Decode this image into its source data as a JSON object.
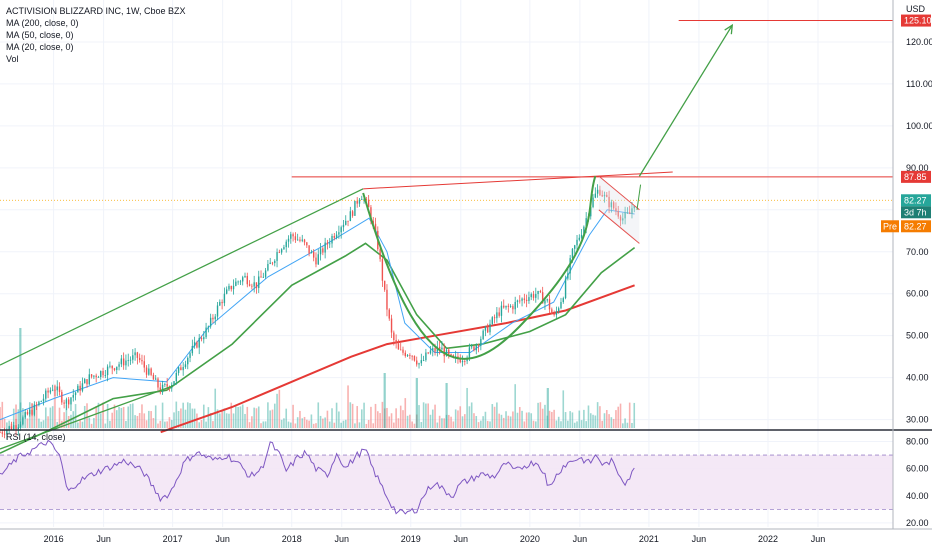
{
  "legend": {
    "title": "ACTIVISION BLIZZARD INC, 1W, Cboe BZX",
    "ma200": "MA (200, close, 0)",
    "ma50": "MA (50, close, 0)",
    "ma20": "MA (20, close, 0)",
    "vol": "Vol",
    "rsi": "RSI (14, close)"
  },
  "currency": "USD",
  "price_tags": {
    "target": "125.10",
    "resistance": "87.85",
    "last": "82.27",
    "countdown": "3d 7h",
    "pre_label": "Pre",
    "pre_value": "82.27"
  },
  "colors": {
    "up": "#26a69a",
    "down": "#ef5350",
    "ma200": "#e53935",
    "ma50": "#43a047",
    "ma20": "#42a5f5",
    "rsi": "#7e57c2",
    "rsi_band": "#f3e5f5",
    "drawing_green": "#43a047",
    "drawing_red": "#e53935",
    "grid": "#f0f3fa"
  },
  "chart_data": {
    "type": "candlestick",
    "title": "ACTIVISION BLIZZARD INC, 1W, Cboe BZX",
    "price_axis": {
      "ticks": [
        30,
        40,
        50,
        60,
        70,
        80,
        90,
        100,
        110,
        120
      ],
      "labels": [
        "30.00",
        "40.00",
        "50.00",
        "60.00",
        "70.00",
        "80.00",
        "90.00",
        "100.00",
        "110.00",
        "120.00"
      ],
      "range": [
        28,
        130
      ]
    },
    "rsi_axis": {
      "ticks": [
        20,
        40,
        60,
        80
      ],
      "labels": [
        "20.00",
        "40.00",
        "60.00",
        "80.00"
      ],
      "range": [
        17,
        87
      ],
      "band": [
        30,
        70
      ]
    },
    "time_axis": {
      "labels": [
        "2016",
        "Jun",
        "2017",
        "Jun",
        "2018",
        "Jun",
        "2019",
        "Jun",
        "2020",
        "Jun",
        "2021",
        "Jun",
        "2022",
        "Jun"
      ],
      "dates": [
        2016.0,
        2016.42,
        2017.0,
        2017.42,
        2018.0,
        2018.42,
        2019.0,
        2019.42,
        2020.0,
        2020.42,
        2021.0,
        2021.42,
        2022.0,
        2022.42
      ],
      "range": [
        2015.55,
        2023.05
      ]
    },
    "price_path": [
      [
        2015.55,
        27
      ],
      [
        2015.7,
        29
      ],
      [
        2015.85,
        33
      ],
      [
        2016.0,
        38
      ],
      [
        2016.1,
        34
      ],
      [
        2016.2,
        37
      ],
      [
        2016.3,
        40
      ],
      [
        2016.45,
        42
      ],
      [
        2016.6,
        44
      ],
      [
        2016.7,
        45
      ],
      [
        2016.8,
        41
      ],
      [
        2016.9,
        37
      ],
      [
        2017.0,
        39
      ],
      [
        2017.1,
        44
      ],
      [
        2017.2,
        48
      ],
      [
        2017.3,
        52
      ],
      [
        2017.4,
        58
      ],
      [
        2017.5,
        62
      ],
      [
        2017.6,
        64
      ],
      [
        2017.7,
        62
      ],
      [
        2017.8,
        66
      ],
      [
        2017.9,
        71
      ],
      [
        2018.0,
        74
      ],
      [
        2018.1,
        72
      ],
      [
        2018.2,
        68
      ],
      [
        2018.3,
        72
      ],
      [
        2018.4,
        76
      ],
      [
        2018.5,
        79
      ],
      [
        2018.58,
        84
      ],
      [
        2018.65,
        80
      ],
      [
        2018.72,
        72
      ],
      [
        2018.78,
        60
      ],
      [
        2018.84,
        50
      ],
      [
        2018.9,
        46
      ],
      [
        2019.0,
        46
      ],
      [
        2019.08,
        43
      ],
      [
        2019.15,
        46
      ],
      [
        2019.25,
        47
      ],
      [
        2019.35,
        44
      ],
      [
        2019.45,
        45
      ],
      [
        2019.55,
        48
      ],
      [
        2019.65,
        52
      ],
      [
        2019.75,
        56
      ],
      [
        2019.85,
        57
      ],
      [
        2019.95,
        59
      ],
      [
        2020.05,
        60
      ],
      [
        2020.15,
        58
      ],
      [
        2020.2,
        54
      ],
      [
        2020.28,
        60
      ],
      [
        2020.36,
        70
      ],
      [
        2020.45,
        76
      ],
      [
        2020.52,
        82
      ],
      [
        2020.58,
        85
      ],
      [
        2020.65,
        82
      ],
      [
        2020.72,
        80
      ],
      [
        2020.78,
        78
      ],
      [
        2020.84,
        79
      ],
      [
        2020.88,
        82.27
      ]
    ],
    "series": [
      {
        "name": "MA (200, close, 0)",
        "values": [
          [
            2016.9,
            27
          ],
          [
            2017.5,
            33
          ],
          [
            2018.0,
            39
          ],
          [
            2018.5,
            45
          ],
          [
            2018.8,
            48
          ],
          [
            2019.2,
            50
          ],
          [
            2019.8,
            53
          ],
          [
            2020.3,
            56
          ],
          [
            2020.88,
            62
          ]
        ]
      },
      {
        "name": "MA (50, close, 0)",
        "values": [
          [
            2015.55,
            22
          ],
          [
            2016.0,
            28
          ],
          [
            2016.5,
            35
          ],
          [
            2016.95,
            37
          ],
          [
            2017.5,
            48
          ],
          [
            2018.0,
            62
          ],
          [
            2018.45,
            69
          ],
          [
            2018.62,
            72
          ],
          [
            2018.8,
            68
          ],
          [
            2019.05,
            55
          ],
          [
            2019.3,
            47
          ],
          [
            2019.6,
            48
          ],
          [
            2020.0,
            51
          ],
          [
            2020.3,
            55
          ],
          [
            2020.6,
            65
          ],
          [
            2020.88,
            71
          ]
        ]
      },
      {
        "name": "MA (20, close, 0)",
        "values": [
          [
            2015.55,
            30
          ],
          [
            2016.0,
            35
          ],
          [
            2016.5,
            40
          ],
          [
            2016.95,
            39
          ],
          [
            2017.3,
            52
          ],
          [
            2017.8,
            64
          ],
          [
            2018.3,
            72
          ],
          [
            2018.65,
            78
          ],
          [
            2018.8,
            70
          ],
          [
            2018.95,
            53
          ],
          [
            2019.2,
            46
          ],
          [
            2019.5,
            46
          ],
          [
            2019.85,
            53
          ],
          [
            2020.2,
            58
          ],
          [
            2020.5,
            74
          ],
          [
            2020.65,
            80
          ],
          [
            2020.88,
            79
          ]
        ]
      }
    ],
    "rsi_path": [
      [
        2015.55,
        55
      ],
      [
        2015.7,
        68
      ],
      [
        2015.85,
        75
      ],
      [
        2015.95,
        80
      ],
      [
        2016.05,
        70
      ],
      [
        2016.12,
        42
      ],
      [
        2016.2,
        50
      ],
      [
        2016.35,
        57
      ],
      [
        2016.5,
        62
      ],
      [
        2016.6,
        66
      ],
      [
        2016.75,
        58
      ],
      [
        2016.9,
        38
      ],
      [
        2016.98,
        42
      ],
      [
        2017.1,
        65
      ],
      [
        2017.2,
        72
      ],
      [
        2017.35,
        66
      ],
      [
        2017.45,
        70
      ],
      [
        2017.55,
        64
      ],
      [
        2017.65,
        54
      ],
      [
        2017.75,
        60
      ],
      [
        2017.82,
        79
      ],
      [
        2017.9,
        70
      ],
      [
        2017.95,
        58
      ],
      [
        2018.05,
        68
      ],
      [
        2018.12,
        72
      ],
      [
        2018.2,
        60
      ],
      [
        2018.3,
        55
      ],
      [
        2018.38,
        72
      ],
      [
        2018.45,
        60
      ],
      [
        2018.55,
        70
      ],
      [
        2018.62,
        74
      ],
      [
        2018.68,
        60
      ],
      [
        2018.75,
        48
      ],
      [
        2018.82,
        36
      ],
      [
        2018.88,
        28
      ],
      [
        2018.95,
        27
      ],
      [
        2019.05,
        30
      ],
      [
        2019.12,
        42
      ],
      [
        2019.2,
        50
      ],
      [
        2019.28,
        44
      ],
      [
        2019.35,
        40
      ],
      [
        2019.42,
        49
      ],
      [
        2019.5,
        52
      ],
      [
        2019.6,
        56
      ],
      [
        2019.7,
        54
      ],
      [
        2019.8,
        64
      ],
      [
        2019.88,
        58
      ],
      [
        2019.95,
        62
      ],
      [
        2020.05,
        65
      ],
      [
        2020.12,
        58
      ],
      [
        2020.15,
        45
      ],
      [
        2020.2,
        52
      ],
      [
        2020.28,
        62
      ],
      [
        2020.36,
        66
      ],
      [
        2020.42,
        68
      ],
      [
        2020.5,
        64
      ],
      [
        2020.56,
        70
      ],
      [
        2020.62,
        62
      ],
      [
        2020.68,
        66
      ],
      [
        2020.75,
        56
      ],
      [
        2020.8,
        50
      ],
      [
        2020.85,
        55
      ],
      [
        2020.88,
        60
      ]
    ],
    "annotations": {
      "green_channel_upper": [
        [
          2015.55,
          43
        ],
        [
          2018.6,
          85
        ]
      ],
      "green_channel_lower": [
        [
          2015.55,
          23
        ],
        [
          2017.0,
          38
        ]
      ],
      "red_rising_line": [
        [
          2018.6,
          85
        ],
        [
          2021.2,
          89
        ]
      ],
      "horizontal_resistance": 87.85,
      "horizontal_target": 125.1,
      "target_arrow": [
        [
          2020.92,
          88
        ],
        [
          2021.7,
          124
        ]
      ],
      "cup_curve": [
        [
          2018.6,
          84
        ],
        [
          2019.15,
          40
        ],
        [
          2019.6,
          44
        ],
        [
          2020.1,
          58
        ],
        [
          2020.55,
          88
        ]
      ],
      "flag_top": [
        [
          2020.58,
          88
        ],
        [
          2020.92,
          80
        ]
      ],
      "flag_bottom": [
        [
          2020.58,
          80
        ],
        [
          2020.92,
          72
        ]
      ]
    }
  }
}
